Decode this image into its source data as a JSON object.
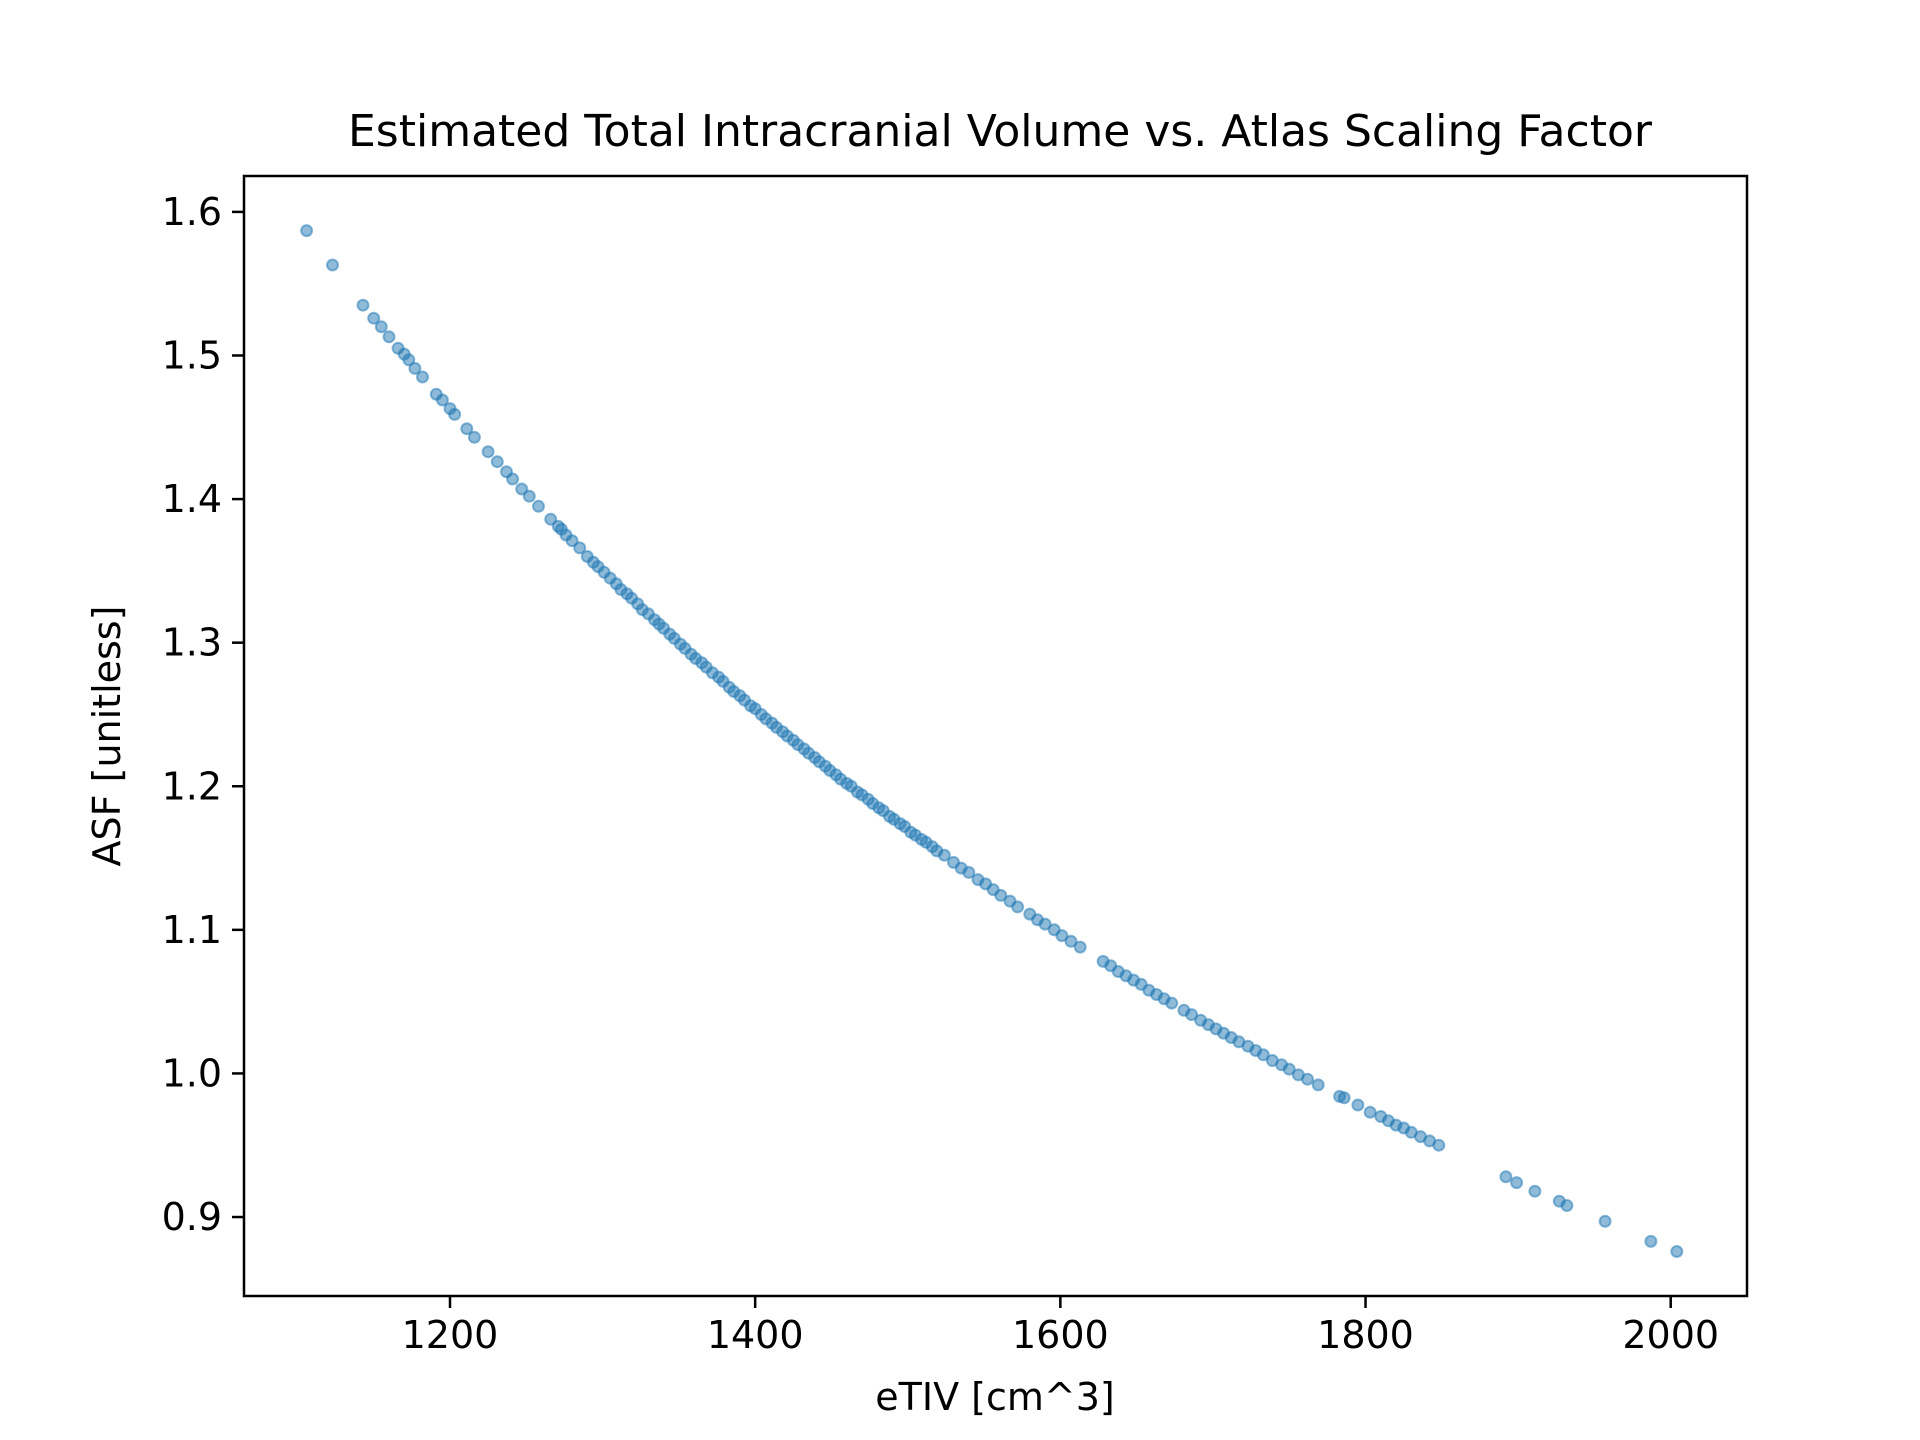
{
  "chart_data": {
    "type": "scatter",
    "title": "Estimated Total Intracranial Volume vs. Atlas Scaling Factor",
    "xlabel": "eTIV [cm^3]",
    "ylabel": "ASF [unitless]",
    "xlim": [
      1065,
      2050
    ],
    "ylim": [
      0.845,
      1.625
    ],
    "xticks": [
      1200,
      1400,
      1600,
      1800,
      2000
    ],
    "xtick_labels": [
      "1200",
      "1400",
      "1600",
      "1800",
      "2000"
    ],
    "yticks": [
      0.9,
      1.0,
      1.1,
      1.2,
      1.3,
      1.4,
      1.5,
      1.6
    ],
    "ytick_labels": [
      "0.9",
      "1.0",
      "1.1",
      "1.2",
      "1.3",
      "1.4",
      "1.5",
      "1.6"
    ],
    "grid": false,
    "marker_color": "#1f77b4",
    "marker_alpha": 0.5,
    "relation": "ASF = 1755 / eTIV",
    "series": [
      {
        "x": [
          1106,
          1123,
          1143,
          1150,
          1155,
          1160,
          1166,
          1170,
          1173,
          1177,
          1182,
          1191,
          1195,
          1200,
          1203,
          1211,
          1216,
          1225,
          1231,
          1237,
          1241,
          1247,
          1252,
          1258,
          1266,
          1271,
          1273,
          1276,
          1280,
          1285,
          1290,
          1294,
          1297,
          1301,
          1305,
          1309,
          1312,
          1316,
          1319,
          1323,
          1326,
          1330,
          1334,
          1337,
          1340,
          1344,
          1347,
          1351,
          1354,
          1358,
          1361,
          1365,
          1368,
          1372,
          1376,
          1379,
          1383,
          1386,
          1390,
          1393,
          1397,
          1400,
          1404,
          1407,
          1411,
          1414,
          1418,
          1421,
          1425,
          1428,
          1432,
          1435,
          1439,
          1442,
          1446,
          1449,
          1453,
          1456,
          1460,
          1463,
          1467,
          1470,
          1474,
          1477,
          1481,
          1484,
          1488,
          1491,
          1495,
          1498,
          1502,
          1505,
          1509,
          1512,
          1516,
          1519,
          1524,
          1530,
          1535,
          1540,
          1546,
          1551,
          1556,
          1561,
          1567,
          1572,
          1580,
          1585,
          1590,
          1596,
          1601,
          1607,
          1613,
          1628,
          1633,
          1638,
          1643,
          1648,
          1653,
          1658,
          1663,
          1668,
          1673,
          1681,
          1686,
          1692,
          1697,
          1702,
          1707,
          1712,
          1717,
          1723,
          1728,
          1733,
          1739,
          1745,
          1750,
          1756,
          1762,
          1769,
          1783,
          1786,
          1795,
          1803,
          1810,
          1815,
          1820,
          1825,
          1830,
          1836,
          1842,
          1848,
          1892,
          1899,
          1911,
          1927,
          1932,
          1957,
          1987,
          2004
        ],
        "y": [
          1.587,
          1.563,
          1.535,
          1.526,
          1.52,
          1.513,
          1.505,
          1.501,
          1.497,
          1.491,
          1.485,
          1.473,
          1.469,
          1.463,
          1.459,
          1.449,
          1.443,
          1.433,
          1.426,
          1.419,
          1.414,
          1.407,
          1.402,
          1.395,
          1.386,
          1.381,
          1.379,
          1.375,
          1.371,
          1.366,
          1.36,
          1.356,
          1.353,
          1.349,
          1.345,
          1.341,
          1.337,
          1.334,
          1.331,
          1.327,
          1.323,
          1.32,
          1.316,
          1.313,
          1.31,
          1.306,
          1.303,
          1.299,
          1.296,
          1.292,
          1.289,
          1.286,
          1.283,
          1.279,
          1.276,
          1.273,
          1.269,
          1.266,
          1.263,
          1.26,
          1.256,
          1.254,
          1.25,
          1.247,
          1.244,
          1.241,
          1.238,
          1.235,
          1.232,
          1.229,
          1.226,
          1.223,
          1.22,
          1.217,
          1.214,
          1.211,
          1.208,
          1.205,
          1.202,
          1.2,
          1.196,
          1.194,
          1.191,
          1.188,
          1.185,
          1.183,
          1.179,
          1.177,
          1.174,
          1.172,
          1.168,
          1.166,
          1.163,
          1.161,
          1.158,
          1.155,
          1.152,
          1.147,
          1.143,
          1.14,
          1.135,
          1.132,
          1.128,
          1.124,
          1.12,
          1.116,
          1.111,
          1.107,
          1.104,
          1.1,
          1.096,
          1.092,
          1.088,
          1.078,
          1.075,
          1.071,
          1.068,
          1.065,
          1.062,
          1.058,
          1.055,
          1.052,
          1.049,
          1.044,
          1.041,
          1.037,
          1.034,
          1.031,
          1.028,
          1.025,
          1.022,
          1.019,
          1.016,
          1.013,
          1.009,
          1.006,
          1.003,
          0.999,
          0.996,
          0.992,
          0.984,
          0.983,
          0.978,
          0.973,
          0.97,
          0.967,
          0.964,
          0.962,
          0.959,
          0.956,
          0.953,
          0.95,
          0.928,
          0.924,
          0.918,
          0.911,
          0.908,
          0.897,
          0.883,
          0.876
        ]
      }
    ]
  }
}
